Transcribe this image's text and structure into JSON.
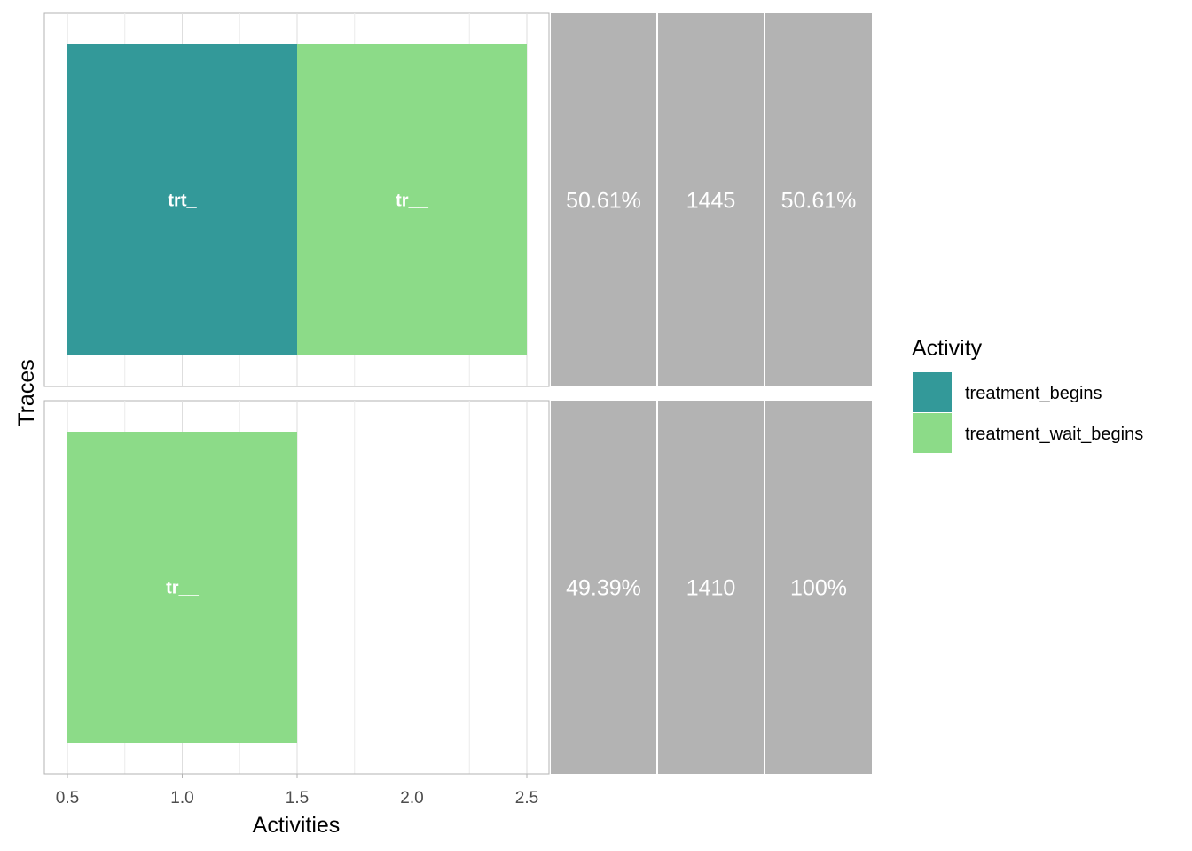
{
  "chart_data": {
    "type": "trace_explorer",
    "xlabel": "Activities",
    "ylabel": "Traces",
    "xlim": [
      0.5,
      2.5
    ],
    "x_ticks": [
      "0.5",
      "1.0",
      "1.5",
      "2.0",
      "2.5"
    ],
    "x_tick_values": [
      0.5,
      1.0,
      1.5,
      2.0,
      2.5
    ],
    "grid": true,
    "legend": {
      "title": "Activity",
      "position": "right",
      "entries": [
        {
          "name": "treatment_begins",
          "color": "#339999"
        },
        {
          "name": "treatment_wait_begins",
          "color": "#8cdb88"
        }
      ]
    },
    "traces": [
      {
        "activities": [
          {
            "x": 1,
            "label": "trt_",
            "activity": "treatment_begins"
          },
          {
            "x": 2,
            "label": "tr__",
            "activity": "treatment_wait_begins"
          }
        ],
        "relative_frequency": "50.61%",
        "absolute_frequency": "1445",
        "cumulative_frequency": "50.61%"
      },
      {
        "activities": [
          {
            "x": 1,
            "label": "tr__",
            "activity": "treatment_wait_begins"
          }
        ],
        "relative_frequency": "49.39%",
        "absolute_frequency": "1410",
        "cumulative_frequency": "100%"
      }
    ]
  }
}
